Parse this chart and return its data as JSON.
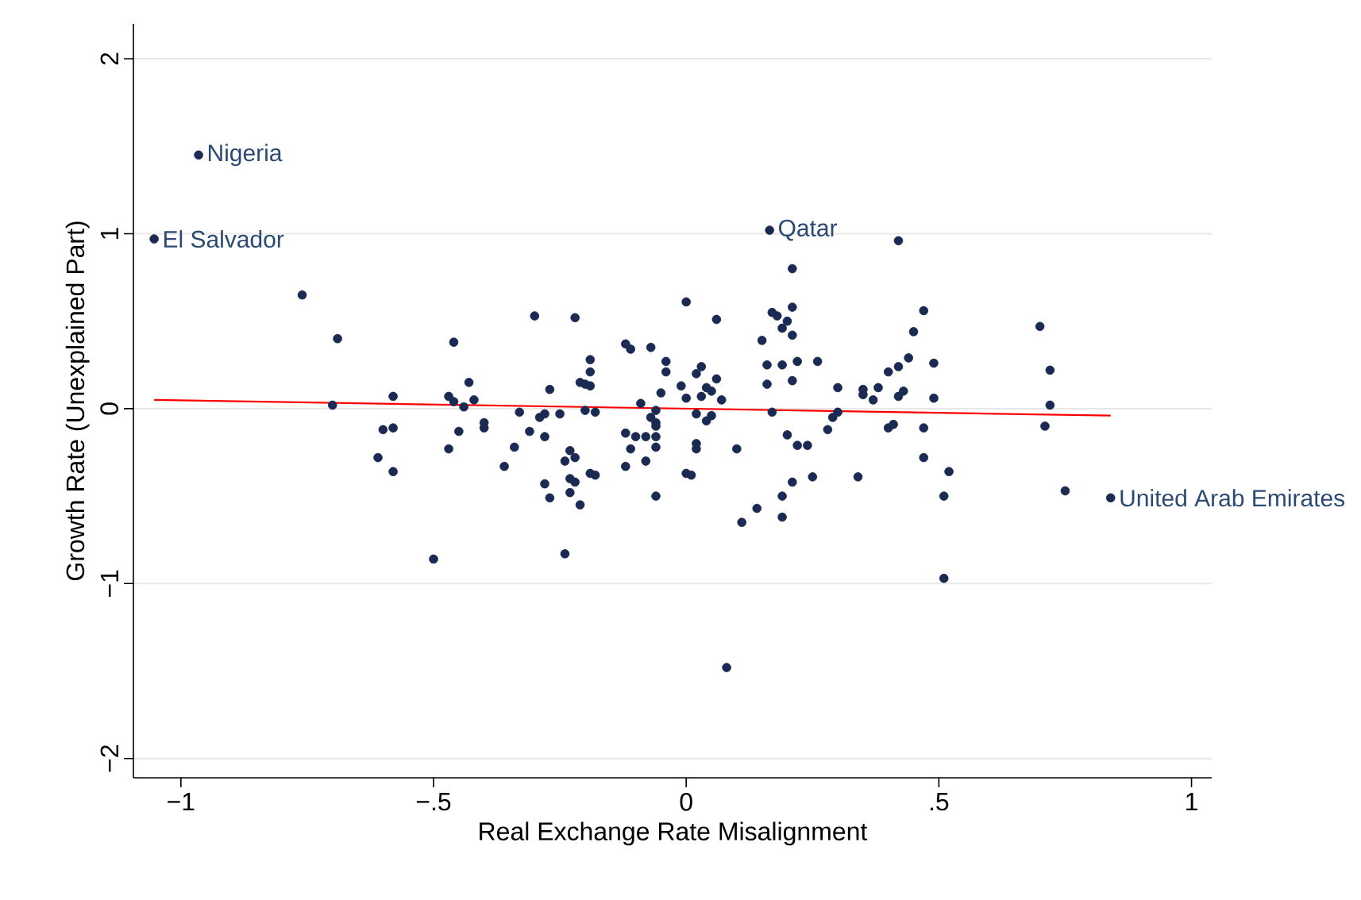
{
  "chart_data": {
    "type": "scatter",
    "xlabel": "Real Exchange Rate Misalignment",
    "ylabel": "Growth Rate (Unexplained Part)",
    "xlim": [
      -1.094,
      1.04
    ],
    "ylim": [
      -2.11,
      2.2
    ],
    "xticks": [
      {
        "value": -1,
        "label": "−1"
      },
      {
        "value": -0.5,
        "label": "−.5"
      },
      0,
      {
        "value": 0.5,
        "label": ".5"
      },
      1
    ],
    "yticks": [
      {
        "value": -2,
        "label": "−2"
      },
      {
        "value": -1,
        "label": "−1"
      },
      0,
      1,
      2
    ],
    "grid": "y",
    "series": [
      {
        "marker": "circle",
        "color": "#1a2a52",
        "x": [
          -0.965,
          -1.053,
          0.165,
          0.84,
          -0.76,
          -0.69,
          -0.7,
          -0.58,
          -0.46,
          -0.43,
          -0.47,
          -0.46,
          -0.44,
          -0.42,
          -0.3,
          -0.6,
          -0.58,
          -0.61,
          -0.58,
          -0.47,
          -0.45,
          -0.4,
          -0.4,
          -0.33,
          -0.31,
          -0.34,
          -0.36,
          -0.29,
          -0.5,
          0.42,
          0.21,
          -0.22,
          0.0,
          0.06,
          0.17,
          0.18,
          0.2,
          0.19,
          0.21,
          0.21,
          0.15,
          0.47,
          0.45,
          0.44,
          0.49,
          0.42,
          0.4,
          -0.19,
          -0.19,
          -0.12,
          -0.11,
          -0.07,
          -0.04,
          -0.04,
          0.03,
          0.02,
          0.06,
          0.16,
          0.19,
          0.22,
          0.26,
          0.16,
          0.21,
          -0.21,
          -0.2,
          -0.19,
          -0.27,
          -0.01,
          0.04,
          0.05,
          0.0,
          0.03,
          0.07,
          -0.05,
          -0.09,
          0.3,
          0.35,
          0.35,
          0.37,
          0.38,
          0.42,
          0.43,
          0.49,
          -0.2,
          -0.18,
          -0.25,
          -0.28,
          -0.06,
          -0.07,
          0.02,
          0.17,
          0.3,
          0.29,
          0.28,
          -0.28,
          -0.12,
          -0.1,
          -0.08,
          -0.06,
          -0.06,
          -0.06,
          0.04,
          0.05,
          0.02,
          0.02,
          0.2,
          0.22,
          0.24,
          0.1,
          0.4,
          0.41,
          0.47,
          0.47,
          -0.24,
          -0.23,
          -0.22,
          -0.11,
          -0.12,
          -0.08,
          -0.06,
          0.0,
          -0.28,
          -0.27,
          -0.23,
          -0.22,
          -0.23,
          -0.21,
          -0.19,
          -0.18,
          -0.24,
          -0.06,
          0.01,
          0.11,
          0.14,
          0.19,
          0.19,
          0.21,
          0.25,
          0.34,
          0.08,
          0.72,
          0.71,
          0.52,
          0.51,
          0.75,
          0.51,
          0.7,
          0.72
        ],
        "values": [
          1.45,
          0.97,
          1.02,
          -0.51,
          0.65,
          0.4,
          0.02,
          0.07,
          0.38,
          0.15,
          0.07,
          0.04,
          0.01,
          0.05,
          0.53,
          -0.12,
          -0.11,
          -0.28,
          -0.36,
          -0.23,
          -0.13,
          -0.08,
          -0.11,
          -0.02,
          -0.13,
          -0.22,
          -0.33,
          -0.05,
          -0.86,
          0.96,
          0.8,
          0.52,
          0.61,
          0.51,
          0.55,
          0.53,
          0.5,
          0.46,
          0.58,
          0.42,
          0.39,
          0.56,
          0.44,
          0.29,
          0.26,
          0.24,
          0.21,
          0.28,
          0.21,
          0.37,
          0.34,
          0.35,
          0.27,
          0.21,
          0.24,
          0.2,
          0.17,
          0.25,
          0.25,
          0.27,
          0.27,
          0.14,
          0.16,
          0.15,
          0.14,
          0.13,
          0.11,
          0.13,
          0.12,
          0.1,
          0.06,
          0.07,
          0.05,
          0.09,
          0.03,
          0.12,
          0.08,
          0.11,
          0.05,
          0.12,
          0.07,
          0.1,
          0.06,
          -0.01,
          -0.02,
          -0.03,
          -0.03,
          -0.01,
          -0.05,
          -0.03,
          -0.02,
          -0.02,
          -0.05,
          -0.12,
          -0.16,
          -0.14,
          -0.16,
          -0.16,
          -0.16,
          -0.08,
          -0.1,
          -0.07,
          -0.04,
          -0.2,
          -0.23,
          -0.15,
          -0.21,
          -0.21,
          -0.23,
          -0.11,
          -0.09,
          -0.11,
          -0.28,
          -0.3,
          -0.24,
          -0.28,
          -0.23,
          -0.33,
          -0.3,
          -0.22,
          -0.37,
          -0.43,
          -0.51,
          -0.4,
          -0.42,
          -0.48,
          -0.55,
          -0.37,
          -0.38,
          -0.83,
          -0.5,
          -0.38,
          -0.65,
          -0.57,
          -0.5,
          -0.62,
          -0.42,
          -0.39,
          -0.39,
          -1.48,
          0.02,
          -0.1,
          -0.36,
          -0.5,
          -0.47,
          -0.97,
          0.47,
          0.22
        ]
      },
      {
        "type": "line",
        "marker": "none",
        "color": "#ff0000",
        "x": [
          -1.053,
          0.84
        ],
        "values": [
          0.05,
          -0.04
        ]
      }
    ],
    "annotations": [
      {
        "text": "Nigeria",
        "x": -0.965,
        "y": 1.45
      },
      {
        "text": "El Salvador",
        "x": -1.053,
        "y": 0.97
      },
      {
        "text": "Qatar",
        "x": 0.165,
        "y": 1.02
      },
      {
        "text": "United Arab Emirates",
        "x": 0.84,
        "y": -0.51
      }
    ]
  }
}
